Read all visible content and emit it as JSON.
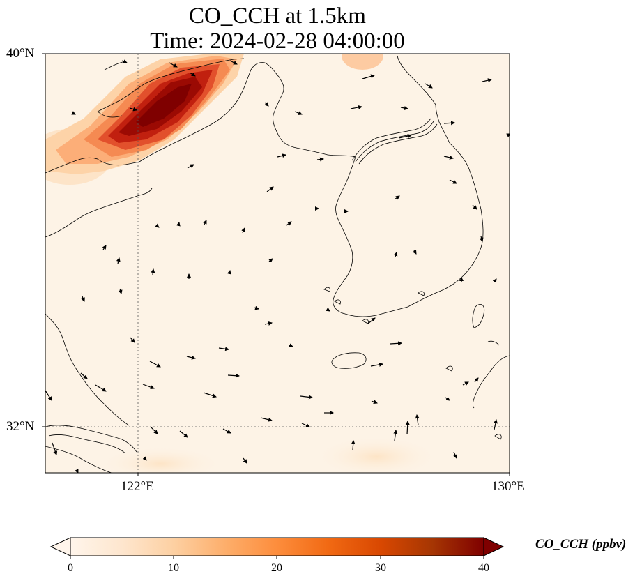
{
  "title": {
    "line1": "CO_CCH at 1.5km",
    "line2": "Time: 2024-02-28 04:00:00"
  },
  "axes": {
    "lat_ticks": [
      {
        "label": "40°N",
        "value": 40
      },
      {
        "label": "32°N",
        "value": 32
      }
    ],
    "lon_ticks": [
      {
        "label": "122°E",
        "value": 122
      },
      {
        "label": "130°E",
        "value": 130
      }
    ],
    "extent": {
      "lon_min": 120,
      "lon_max": 130,
      "lat_min": 31,
      "lat_max": 40
    },
    "gridlines": "dotted"
  },
  "colorbar": {
    "label": "CO_CCH (ppbv)",
    "ticks": [
      "0",
      "10",
      "20",
      "30",
      "40"
    ],
    "range": [
      0,
      40
    ],
    "colormap": [
      "#fff5eb",
      "#fee6ce",
      "#fdd0a2",
      "#fdae6b",
      "#fd8d3c",
      "#f16913",
      "#d94801",
      "#a63603",
      "#7f0000"
    ],
    "extend": "both"
  },
  "colors": {
    "background_field": "#fdf3e6",
    "plume_max": "#7f0000",
    "coastline": "#000000"
  },
  "plume_note": "High CO_CCH plume near Liaodong Peninsula / Bohai region (northwest corner), peaking near 40 ppbv"
}
